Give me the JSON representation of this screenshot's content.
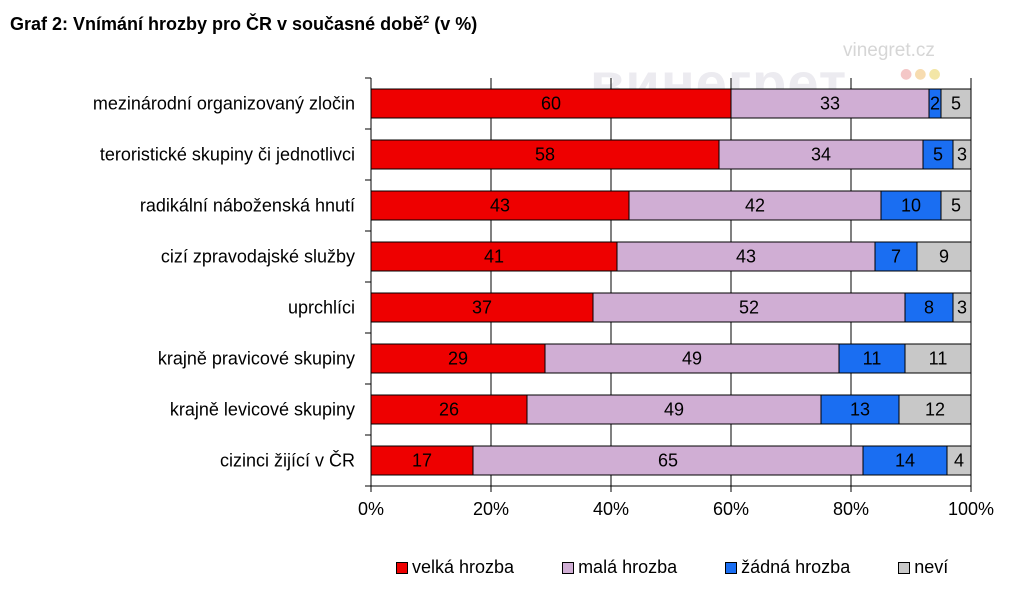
{
  "title": {
    "text": "Graf 2: Vnímání hrozby pro ČR v současné době",
    "sup": "2",
    "suffix": " (v %)"
  },
  "watermark": {
    "small": "vinegret.cz",
    "big": "винегрет"
  },
  "colors": {
    "velka": "#ee0000",
    "mala": "#d0aed4",
    "zadna": "#1a6ef2",
    "nevi": "#c8c8c8",
    "grid": "#000000"
  },
  "chart_data": {
    "type": "bar",
    "orientation": "horizontal",
    "stacked": true,
    "categories": [
      "mezinárodní organizovaný zločin",
      "teroristické skupiny či jednotlivci",
      "radikální náboženská hnutí",
      "cizí zpravodajské služby",
      "uprchlíci",
      "krajně pravicové skupiny",
      "krajně levicové skupiny",
      "cizinci žijící v ČR"
    ],
    "series": [
      {
        "name": "velká hrozba",
        "values": [
          60,
          58,
          43,
          41,
          37,
          29,
          26,
          17
        ]
      },
      {
        "name": "malá hrozba",
        "values": [
          33,
          34,
          42,
          43,
          52,
          49,
          49,
          65
        ]
      },
      {
        "name": "žádná hrozba",
        "values": [
          2,
          5,
          10,
          7,
          8,
          11,
          13,
          14
        ]
      },
      {
        "name": "neví",
        "values": [
          5,
          3,
          5,
          9,
          3,
          11,
          12,
          4
        ]
      }
    ],
    "xlim": [
      0,
      100
    ],
    "xticks": [
      "0%",
      "20%",
      "40%",
      "60%",
      "80%",
      "100%"
    ],
    "grid": true,
    "legend_position": "bottom"
  }
}
